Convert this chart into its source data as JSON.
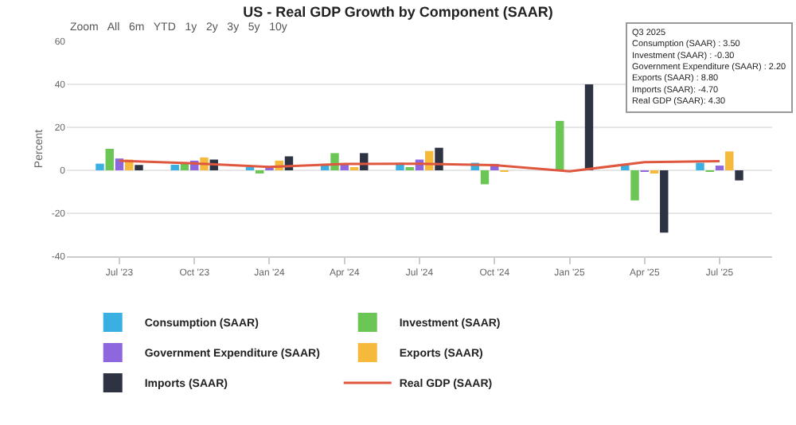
{
  "chart_data": {
    "type": "bar",
    "title": "US - Real GDP Growth by Component (SAAR)",
    "ylabel": "Percent",
    "categories": [
      "Jul '23",
      "Oct '23",
      "Jan '24",
      "Apr '24",
      "Jul '24",
      "Oct '24",
      "Jan '25",
      "Apr '25",
      "Jul '25"
    ],
    "series": [
      {
        "name": "Consumption (SAAR)",
        "color": "#3ab0e2",
        "values": [
          3.1,
          2.6,
          1.5,
          3,
          3.5,
          3.5,
          null,
          2.5,
          3.5
        ]
      },
      {
        "name": "Investment (SAAR)",
        "color": "#6cc655",
        "values": [
          10,
          3.5,
          -1,
          8,
          0.8,
          -6.5,
          23,
          -14,
          -0.3
        ]
      },
      {
        "name": "Government Expenditure (SAAR)",
        "color": "#8e66dd",
        "values": [
          5.5,
          4.5,
          2,
          3,
          5,
          3,
          null,
          -0.5,
          2.2
        ]
      },
      {
        "name": "Exports (SAAR)",
        "color": "#f5b93c",
        "values": [
          5,
          6,
          4.5,
          1,
          9,
          -0.5,
          null,
          -1.5,
          8.8
        ]
      },
      {
        "name": "Imports (SAAR)",
        "color": "#2e3344",
        "values": [
          2.5,
          5,
          6.5,
          8,
          10.5,
          null,
          40,
          -29,
          -4.7
        ]
      },
      {
        "name": "Real GDP (SAAR)",
        "color": "#e0573f",
        "type": "line",
        "values": [
          4.4,
          3.2,
          1.6,
          3,
          3.1,
          2.4,
          -0.5,
          3.8,
          4.3
        ]
      }
    ],
    "ylim": [
      -40,
      60
    ],
    "yticks": [
      -40,
      -20,
      0,
      20,
      40,
      60
    ],
    "grid": "y",
    "legend": "bottom",
    "annotations": [
      "Zoom   All   6m   YTD   1y   2y   3y   5y   10y",
      "Q3 2025\nConsumption (SAAR) : 3.50\nInvestment (SAAR) : -0.30\nGovernment Expenditure (SAAR) : 2.20\nExports (SAAR) : 8.80\nImports (SAAR): -4.70\nReal GDP (SAAR): 4.30"
    ]
  }
}
